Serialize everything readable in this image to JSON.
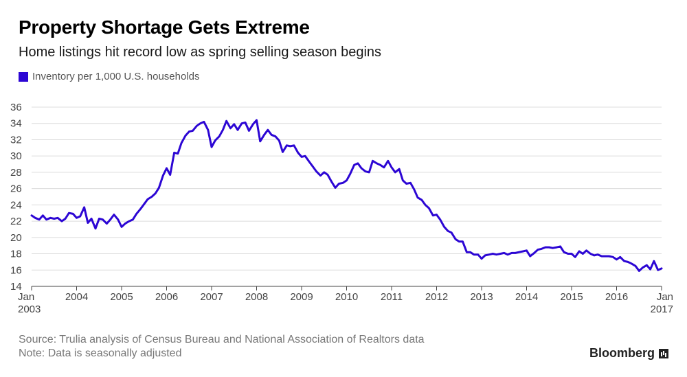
{
  "header": {
    "title": "Property Shortage Gets Extreme",
    "subtitle": "Home listings hit record low as spring selling season begins"
  },
  "legend": {
    "label": "Inventory per 1,000 U.S. households",
    "color": "#2c06d4"
  },
  "footer": {
    "source": "Source: Trulia analysis of Census Bureau and National Association of Realtors data",
    "note": "Note: Data is seasonally adjusted",
    "brand": "Bloomberg"
  },
  "chart_data": {
    "type": "line",
    "title": "Property Shortage Gets Extreme",
    "subtitle": "Home listings hit record low as spring selling season begins",
    "xlabel": "",
    "ylabel": "",
    "ylim": [
      14,
      36
    ],
    "yticks": [
      14,
      16,
      18,
      20,
      22,
      24,
      26,
      28,
      30,
      32,
      34,
      36
    ],
    "xlim": [
      2003.0,
      2017.0
    ],
    "xtick_labels": [
      {
        "x": 2003.0,
        "lines": [
          "Jan",
          "2003"
        ]
      },
      {
        "x": 2004.0,
        "lines": [
          "2004"
        ]
      },
      {
        "x": 2005.0,
        "lines": [
          "2005"
        ]
      },
      {
        "x": 2006.0,
        "lines": [
          "2006"
        ]
      },
      {
        "x": 2007.0,
        "lines": [
          "2007"
        ]
      },
      {
        "x": 2008.0,
        "lines": [
          "2008"
        ]
      },
      {
        "x": 2009.0,
        "lines": [
          "2009"
        ]
      },
      {
        "x": 2010.0,
        "lines": [
          "2010"
        ]
      },
      {
        "x": 2011.0,
        "lines": [
          "2011"
        ]
      },
      {
        "x": 2012.0,
        "lines": [
          "2012"
        ]
      },
      {
        "x": 2013.0,
        "lines": [
          "2013"
        ]
      },
      {
        "x": 2014.0,
        "lines": [
          "2014"
        ]
      },
      {
        "x": 2015.0,
        "lines": [
          "2015"
        ]
      },
      {
        "x": 2016.0,
        "lines": [
          "2016"
        ]
      },
      {
        "x": 2017.0,
        "lines": [
          "Jan",
          "2017"
        ]
      }
    ],
    "grid": true,
    "series": [
      {
        "name": "Inventory per 1,000 U.S. households",
        "color": "#2c06d4",
        "points": [
          [
            2003.0,
            22.7
          ],
          [
            2003.08,
            22.4
          ],
          [
            2003.17,
            22.2
          ],
          [
            2003.25,
            22.7
          ],
          [
            2003.33,
            22.2
          ],
          [
            2003.42,
            22.4
          ],
          [
            2003.5,
            22.3
          ],
          [
            2003.58,
            22.4
          ],
          [
            2003.67,
            22.0
          ],
          [
            2003.75,
            22.3
          ],
          [
            2003.83,
            23.0
          ],
          [
            2003.92,
            22.9
          ],
          [
            2004.0,
            22.4
          ],
          [
            2004.08,
            22.6
          ],
          [
            2004.17,
            23.7
          ],
          [
            2004.25,
            21.8
          ],
          [
            2004.33,
            22.3
          ],
          [
            2004.42,
            21.1
          ],
          [
            2004.5,
            22.3
          ],
          [
            2004.58,
            22.2
          ],
          [
            2004.67,
            21.7
          ],
          [
            2004.75,
            22.2
          ],
          [
            2004.83,
            22.8
          ],
          [
            2004.92,
            22.2
          ],
          [
            2005.0,
            21.3
          ],
          [
            2005.08,
            21.7
          ],
          [
            2005.17,
            22.0
          ],
          [
            2005.25,
            22.2
          ],
          [
            2005.33,
            22.9
          ],
          [
            2005.42,
            23.5
          ],
          [
            2005.5,
            24.1
          ],
          [
            2005.58,
            24.7
          ],
          [
            2005.67,
            25.0
          ],
          [
            2005.75,
            25.4
          ],
          [
            2005.83,
            26.1
          ],
          [
            2005.92,
            27.6
          ],
          [
            2006.0,
            28.5
          ],
          [
            2006.08,
            27.7
          ],
          [
            2006.17,
            30.4
          ],
          [
            2006.25,
            30.3
          ],
          [
            2006.33,
            31.6
          ],
          [
            2006.42,
            32.5
          ],
          [
            2006.5,
            33.0
          ],
          [
            2006.58,
            33.1
          ],
          [
            2006.67,
            33.7
          ],
          [
            2006.75,
            34.0
          ],
          [
            2006.83,
            34.2
          ],
          [
            2006.92,
            33.2
          ],
          [
            2007.0,
            31.1
          ],
          [
            2007.08,
            31.9
          ],
          [
            2007.17,
            32.4
          ],
          [
            2007.25,
            33.2
          ],
          [
            2007.33,
            34.3
          ],
          [
            2007.42,
            33.4
          ],
          [
            2007.5,
            33.9
          ],
          [
            2007.58,
            33.2
          ],
          [
            2007.67,
            34.0
          ],
          [
            2007.75,
            34.1
          ],
          [
            2007.83,
            33.1
          ],
          [
            2007.92,
            33.9
          ],
          [
            2008.0,
            34.4
          ],
          [
            2008.08,
            31.8
          ],
          [
            2008.17,
            32.6
          ],
          [
            2008.25,
            33.2
          ],
          [
            2008.33,
            32.6
          ],
          [
            2008.42,
            32.4
          ],
          [
            2008.5,
            31.9
          ],
          [
            2008.58,
            30.5
          ],
          [
            2008.67,
            31.3
          ],
          [
            2008.75,
            31.2
          ],
          [
            2008.83,
            31.3
          ],
          [
            2008.92,
            30.4
          ],
          [
            2009.0,
            29.9
          ],
          [
            2009.08,
            30.0
          ],
          [
            2009.17,
            29.3
          ],
          [
            2009.25,
            28.7
          ],
          [
            2009.33,
            28.1
          ],
          [
            2009.42,
            27.6
          ],
          [
            2009.5,
            28.0
          ],
          [
            2009.58,
            27.7
          ],
          [
            2009.67,
            26.8
          ],
          [
            2009.75,
            26.1
          ],
          [
            2009.83,
            26.6
          ],
          [
            2009.92,
            26.7
          ],
          [
            2010.0,
            27.0
          ],
          [
            2010.08,
            27.8
          ],
          [
            2010.17,
            28.9
          ],
          [
            2010.25,
            29.1
          ],
          [
            2010.33,
            28.5
          ],
          [
            2010.42,
            28.1
          ],
          [
            2010.5,
            28.0
          ],
          [
            2010.58,
            29.4
          ],
          [
            2010.67,
            29.1
          ],
          [
            2010.75,
            28.9
          ],
          [
            2010.83,
            28.6
          ],
          [
            2010.92,
            29.4
          ],
          [
            2011.0,
            28.6
          ],
          [
            2011.08,
            28.0
          ],
          [
            2011.17,
            28.4
          ],
          [
            2011.25,
            27.0
          ],
          [
            2011.33,
            26.6
          ],
          [
            2011.42,
            26.7
          ],
          [
            2011.5,
            25.9
          ],
          [
            2011.58,
            24.9
          ],
          [
            2011.67,
            24.6
          ],
          [
            2011.75,
            24.0
          ],
          [
            2011.83,
            23.6
          ],
          [
            2011.92,
            22.7
          ],
          [
            2012.0,
            22.8
          ],
          [
            2012.08,
            22.2
          ],
          [
            2012.17,
            21.3
          ],
          [
            2012.25,
            20.8
          ],
          [
            2012.33,
            20.6
          ],
          [
            2012.42,
            19.8
          ],
          [
            2012.5,
            19.5
          ],
          [
            2012.58,
            19.5
          ],
          [
            2012.67,
            18.2
          ],
          [
            2012.75,
            18.2
          ],
          [
            2012.83,
            17.9
          ],
          [
            2012.92,
            17.9
          ],
          [
            2013.0,
            17.4
          ],
          [
            2013.08,
            17.8
          ],
          [
            2013.17,
            17.9
          ],
          [
            2013.25,
            18.0
          ],
          [
            2013.33,
            17.9
          ],
          [
            2013.42,
            18.0
          ],
          [
            2013.5,
            18.1
          ],
          [
            2013.58,
            17.9
          ],
          [
            2013.67,
            18.1
          ],
          [
            2013.75,
            18.1
          ],
          [
            2013.83,
            18.2
          ],
          [
            2013.92,
            18.3
          ],
          [
            2014.0,
            18.4
          ],
          [
            2014.08,
            17.7
          ],
          [
            2014.17,
            18.1
          ],
          [
            2014.25,
            18.5
          ],
          [
            2014.33,
            18.6
          ],
          [
            2014.42,
            18.8
          ],
          [
            2014.5,
            18.8
          ],
          [
            2014.58,
            18.7
          ],
          [
            2014.67,
            18.8
          ],
          [
            2014.75,
            18.9
          ],
          [
            2014.83,
            18.2
          ],
          [
            2014.92,
            18.0
          ],
          [
            2015.0,
            18.0
          ],
          [
            2015.08,
            17.6
          ],
          [
            2015.17,
            18.3
          ],
          [
            2015.25,
            18.0
          ],
          [
            2015.33,
            18.4
          ],
          [
            2015.42,
            18.0
          ],
          [
            2015.5,
            17.8
          ],
          [
            2015.58,
            17.9
          ],
          [
            2015.67,
            17.7
          ],
          [
            2015.75,
            17.7
          ],
          [
            2015.83,
            17.7
          ],
          [
            2015.92,
            17.6
          ],
          [
            2016.0,
            17.3
          ],
          [
            2016.08,
            17.6
          ],
          [
            2016.17,
            17.1
          ],
          [
            2016.25,
            17.0
          ],
          [
            2016.33,
            16.8
          ],
          [
            2016.42,
            16.5
          ],
          [
            2016.5,
            15.9
          ],
          [
            2016.58,
            16.3
          ],
          [
            2016.67,
            16.6
          ],
          [
            2016.75,
            16.1
          ],
          [
            2016.83,
            17.1
          ],
          [
            2016.92,
            16.0
          ],
          [
            2017.0,
            16.2
          ]
        ]
      }
    ]
  }
}
